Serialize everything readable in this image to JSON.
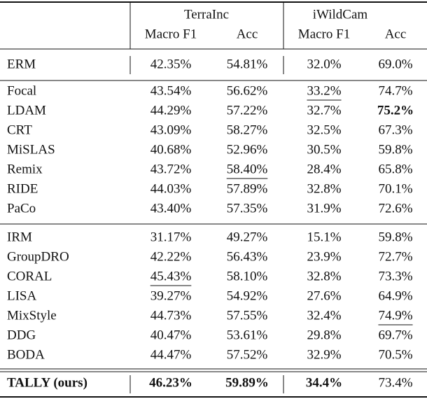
{
  "table": {
    "header": {
      "groups": [
        "TerraInc",
        "iWildCam"
      ],
      "columns": [
        "Macro F1",
        "Acc",
        "Macro F1",
        "Acc"
      ]
    },
    "sections": [
      {
        "rows": [
          {
            "method": "ERM",
            "cells": [
              "42.35%",
              "54.81%",
              "32.0%",
              "69.0%"
            ]
          }
        ]
      },
      {
        "rows": [
          {
            "method": "Focal",
            "cells": [
              "43.54%",
              "56.62%",
              {
                "text": "33.2%",
                "style": "underline"
              },
              "74.7%"
            ]
          },
          {
            "method": "LDAM",
            "cells": [
              "44.29%",
              "57.22%",
              "32.7%",
              {
                "text": "75.2%",
                "style": "bold"
              }
            ]
          },
          {
            "method": "CRT",
            "cells": [
              "43.09%",
              "58.27%",
              "32.5%",
              "67.3%"
            ]
          },
          {
            "method": "MiSLAS",
            "cells": [
              "40.68%",
              "52.96%",
              "30.5%",
              "59.8%"
            ]
          },
          {
            "method": "Remix",
            "cells": [
              "43.72%",
              {
                "text": "58.40%",
                "style": "underline"
              },
              "28.4%",
              "65.8%"
            ]
          },
          {
            "method": "RIDE",
            "cells": [
              "44.03%",
              "57.89%",
              "32.8%",
              "70.1%"
            ]
          },
          {
            "method": "PaCo",
            "cells": [
              "43.40%",
              "57.35%",
              "31.9%",
              "72.6%"
            ]
          }
        ]
      },
      {
        "rows": [
          {
            "method": "IRM",
            "cells": [
              "31.17%",
              "49.27%",
              "15.1%",
              "59.8%"
            ]
          },
          {
            "method": "GroupDRO",
            "cells": [
              "42.22%",
              "56.43%",
              "23.9%",
              "72.7%"
            ]
          },
          {
            "method": "CORAL",
            "cells": [
              {
                "text": "45.43%",
                "style": "underline"
              },
              "58.10%",
              "32.8%",
              "73.3%"
            ]
          },
          {
            "method": "LISA",
            "cells": [
              "39.27%",
              "54.92%",
              "27.6%",
              "64.9%"
            ]
          },
          {
            "method": "MixStyle",
            "cells": [
              "44.73%",
              "57.55%",
              "32.4%",
              {
                "text": "74.9%",
                "style": "underline"
              }
            ]
          },
          {
            "method": "DDG",
            "cells": [
              "40.47%",
              "53.61%",
              "29.8%",
              "69.7%"
            ]
          },
          {
            "method": "BODA",
            "cells": [
              "44.47%",
              "57.52%",
              "32.9%",
              "70.5%"
            ]
          }
        ]
      },
      {
        "rows": [
          {
            "method": {
              "text": "TALLY (ours)",
              "style": "bold"
            },
            "cells": [
              {
                "text": "46.23%",
                "style": "bold"
              },
              {
                "text": "59.89%",
                "style": "bold"
              },
              {
                "text": "34.4%",
                "style": "bold"
              },
              "73.4%"
            ]
          }
        ]
      }
    ]
  }
}
